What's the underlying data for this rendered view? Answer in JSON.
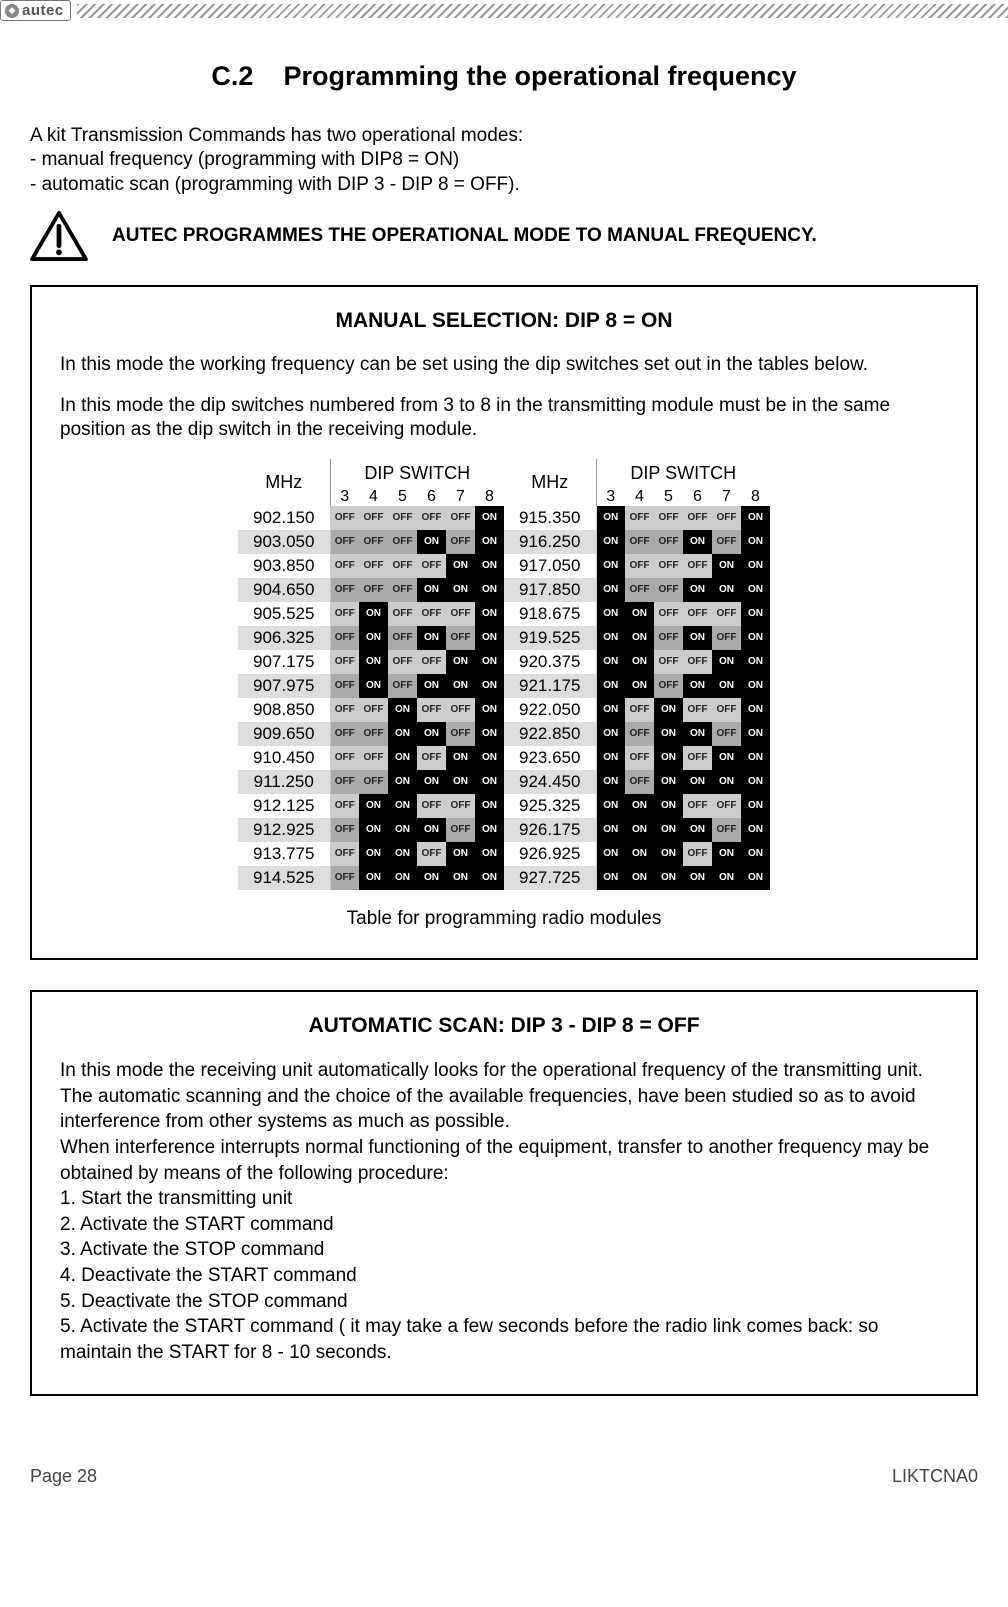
{
  "logo_text": "autec",
  "section_number": "C.2",
  "section_heading": "Programming the operational frequency",
  "intro_lines": [
    "A kit Transmission Commands has two operational modes:",
    "- manual frequency (programming with DIP8 = ON)",
    "- automatic scan (programming with DIP 3 - DIP 8 = OFF)."
  ],
  "warn_text": "AUTEC PROGRAMMES THE OPERATIONAL MODE TO MANUAL FREQUENCY.",
  "box_manual": {
    "title": "MANUAL SELECTION: DIP 8 = ON",
    "p1": "In this mode the working frequency can be set using the dip switches set out in the tables below.",
    "p2": "In this mode the dip switches numbered from 3 to 8 in the transmitting module must be in the same position as the dip switch in the receiving module.",
    "header_mhz": "MHz",
    "header_dip": "DIP SWITCH",
    "switch_numbers": [
      "3",
      "4",
      "5",
      "6",
      "7",
      "8"
    ],
    "caption": "Table for programming radio modules",
    "left_rows": [
      {
        "f": "902.150",
        "s": [
          "OFF",
          "OFF",
          "OFF",
          "OFF",
          "OFF",
          "ON"
        ]
      },
      {
        "f": "903.050",
        "s": [
          "OFF",
          "OFF",
          "OFF",
          "ON",
          "OFF",
          "ON"
        ]
      },
      {
        "f": "903.850",
        "s": [
          "OFF",
          "OFF",
          "OFF",
          "OFF",
          "ON",
          "ON"
        ]
      },
      {
        "f": "904.650",
        "s": [
          "OFF",
          "OFF",
          "OFF",
          "ON",
          "ON",
          "ON"
        ]
      },
      {
        "f": "905.525",
        "s": [
          "OFF",
          "ON",
          "OFF",
          "OFF",
          "OFF",
          "ON"
        ]
      },
      {
        "f": "906.325",
        "s": [
          "OFF",
          "ON",
          "OFF",
          "ON",
          "OFF",
          "ON"
        ]
      },
      {
        "f": "907.175",
        "s": [
          "OFF",
          "ON",
          "OFF",
          "OFF",
          "ON",
          "ON"
        ]
      },
      {
        "f": "907.975",
        "s": [
          "OFF",
          "ON",
          "OFF",
          "ON",
          "ON",
          "ON"
        ]
      },
      {
        "f": "908.850",
        "s": [
          "OFF",
          "OFF",
          "ON",
          "OFF",
          "OFF",
          "ON"
        ]
      },
      {
        "f": "909.650",
        "s": [
          "OFF",
          "OFF",
          "ON",
          "ON",
          "OFF",
          "ON"
        ]
      },
      {
        "f": "910.450",
        "s": [
          "OFF",
          "OFF",
          "ON",
          "OFF",
          "ON",
          "ON"
        ]
      },
      {
        "f": "911.250",
        "s": [
          "OFF",
          "OFF",
          "ON",
          "ON",
          "ON",
          "ON"
        ]
      },
      {
        "f": "912.125",
        "s": [
          "OFF",
          "ON",
          "ON",
          "OFF",
          "OFF",
          "ON"
        ]
      },
      {
        "f": "912.925",
        "s": [
          "OFF",
          "ON",
          "ON",
          "ON",
          "OFF",
          "ON"
        ]
      },
      {
        "f": "913.775",
        "s": [
          "OFF",
          "ON",
          "ON",
          "OFF",
          "ON",
          "ON"
        ]
      },
      {
        "f": "914.525",
        "s": [
          "OFF",
          "ON",
          "ON",
          "ON",
          "ON",
          "ON"
        ]
      }
    ],
    "right_rows": [
      {
        "f": "915.350",
        "s": [
          "ON",
          "OFF",
          "OFF",
          "OFF",
          "OFF",
          "ON"
        ]
      },
      {
        "f": "916.250",
        "s": [
          "ON",
          "OFF",
          "OFF",
          "ON",
          "OFF",
          "ON"
        ]
      },
      {
        "f": "917.050",
        "s": [
          "ON",
          "OFF",
          "OFF",
          "OFF",
          "ON",
          "ON"
        ]
      },
      {
        "f": "917.850",
        "s": [
          "ON",
          "OFF",
          "OFF",
          "ON",
          "ON",
          "ON"
        ]
      },
      {
        "f": "918.675",
        "s": [
          "ON",
          "ON",
          "OFF",
          "OFF",
          "OFF",
          "ON"
        ]
      },
      {
        "f": "919.525",
        "s": [
          "ON",
          "ON",
          "OFF",
          "ON",
          "OFF",
          "ON"
        ]
      },
      {
        "f": "920.375",
        "s": [
          "ON",
          "ON",
          "OFF",
          "OFF",
          "ON",
          "ON"
        ]
      },
      {
        "f": "921.175",
        "s": [
          "ON",
          "ON",
          "OFF",
          "ON",
          "ON",
          "ON"
        ]
      },
      {
        "f": "922.050",
        "s": [
          "ON",
          "OFF",
          "ON",
          "OFF",
          "OFF",
          "ON"
        ]
      },
      {
        "f": "922.850",
        "s": [
          "ON",
          "OFF",
          "ON",
          "ON",
          "OFF",
          "ON"
        ]
      },
      {
        "f": "923.650",
        "s": [
          "ON",
          "OFF",
          "ON",
          "OFF",
          "ON",
          "ON"
        ]
      },
      {
        "f": "924.450",
        "s": [
          "ON",
          "OFF",
          "ON",
          "ON",
          "ON",
          "ON"
        ]
      },
      {
        "f": "925.325",
        "s": [
          "ON",
          "ON",
          "ON",
          "OFF",
          "OFF",
          "ON"
        ]
      },
      {
        "f": "926.175",
        "s": [
          "ON",
          "ON",
          "ON",
          "ON",
          "OFF",
          "ON"
        ]
      },
      {
        "f": "926.925",
        "s": [
          "ON",
          "ON",
          "ON",
          "OFF",
          "ON",
          "ON"
        ]
      },
      {
        "f": "927.725",
        "s": [
          "ON",
          "ON",
          "ON",
          "ON",
          "ON",
          "ON"
        ]
      }
    ]
  },
  "box_auto": {
    "title": "AUTOMATIC SCAN: DIP 3 - DIP 8 = OFF",
    "body": [
      "In this mode the receiving unit automatically looks for the operational frequency of the transmitting unit. The automatic scanning and the choice of the available frequencies, have been studied so as to avoid interference from other systems as much as possible.",
      "When interference interrupts normal functioning of the equipment, transfer to another frequency may be obtained by means of the following procedure:",
      "1. Start the transmitting unit",
      "2. Activate the START command",
      "3. Activate the STOP command",
      "4. Deactivate the START command",
      "5. Deactivate the STOP command",
      "5. Activate the START command ( it may take a few seconds before the radio link comes back: so maintain the START for 8 - 10 seconds."
    ]
  },
  "footer_left": "Page 28",
  "footer_right": "LIKTCNA0"
}
